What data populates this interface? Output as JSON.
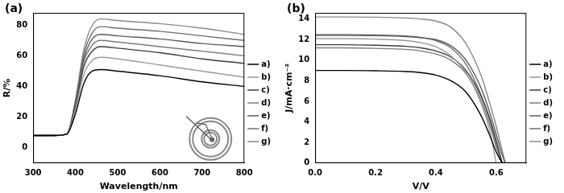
{
  "chart_data": [
    {
      "type": "line",
      "title": "(a)",
      "x_label": "Wavelength/nm",
      "y_label": "R/%",
      "x": [
        300,
        350,
        380,
        400,
        420,
        440,
        460,
        500,
        600,
        700,
        800
      ],
      "series": [
        {
          "name": "a)",
          "color": "#000000",
          "values": [
            8,
            8,
            9,
            22,
            42,
            50,
            51,
            50,
            47,
            43,
            40
          ]
        },
        {
          "name": "b)",
          "color": "#9a9a9a",
          "values": [
            8,
            8,
            9,
            25,
            48,
            57,
            59,
            58,
            54,
            50,
            46
          ]
        },
        {
          "name": "c)",
          "color": "#3c3c3c",
          "values": [
            8,
            8,
            9,
            27,
            53,
            63,
            66,
            65,
            62,
            58,
            55
          ]
        },
        {
          "name": "d)",
          "color": "#7a7a7a",
          "values": [
            8,
            8,
            9,
            28,
            56,
            67,
            70,
            69,
            66,
            63,
            60
          ]
        },
        {
          "name": "e)",
          "color": "#5a5a5a",
          "values": [
            8,
            8,
            9,
            29,
            58,
            71,
            74,
            73,
            71,
            68,
            66
          ]
        },
        {
          "name": "f)",
          "color": "#6e6e6e",
          "values": [
            8,
            8,
            9,
            30,
            61,
            75,
            79,
            78,
            76,
            73,
            70
          ]
        },
        {
          "name": "g)",
          "color": "#888888",
          "values": [
            8,
            8,
            9,
            31,
            64,
            80,
            84,
            83,
            81,
            78,
            74
          ]
        }
      ],
      "xlim": [
        300,
        800
      ],
      "xticks": [
        300,
        400,
        500,
        600,
        700,
        800
      ],
      "ylim": [
        -10,
        88
      ],
      "yticks": [
        0,
        20,
        40,
        60,
        80
      ],
      "grid": false,
      "legend": "right"
    },
    {
      "type": "line",
      "title": "(b)",
      "x_label": "V/V",
      "y_label": "J/mA·cm⁻²",
      "x": [
        0,
        0.1,
        0.2,
        0.3,
        0.35,
        0.4,
        0.45,
        0.5,
        0.55,
        0.58,
        0.6,
        0.62,
        0.63
      ],
      "series": [
        {
          "name": "a)",
          "color": "#000000",
          "values": [
            9.0,
            9.0,
            8.97,
            8.9,
            8.8,
            8.55,
            8.0,
            6.9,
            4.6,
            2.6,
            1.1,
            0,
            null
          ]
        },
        {
          "name": "b)",
          "color": "#9a9a9a",
          "values": [
            12.1,
            12.1,
            12.05,
            11.9,
            11.7,
            11.3,
            10.4,
            8.8,
            5.8,
            3.0,
            0,
            null,
            null
          ]
        },
        {
          "name": "c)",
          "color": "#3c3c3c",
          "values": [
            11.5,
            11.5,
            11.45,
            11.35,
            11.2,
            10.9,
            10.3,
            9.0,
            6.5,
            4.2,
            2.2,
            0,
            null
          ]
        },
        {
          "name": "d)",
          "color": "#7a7a7a",
          "values": [
            11.2,
            11.2,
            11.15,
            11.05,
            10.9,
            10.6,
            10.0,
            8.7,
            6.1,
            3.6,
            1.6,
            0,
            null
          ]
        },
        {
          "name": "e)",
          "color": "#5a5a5a",
          "values": [
            12.4,
            12.4,
            12.38,
            12.3,
            12.2,
            12.0,
            11.4,
            10.0,
            7.3,
            4.8,
            2.8,
            0.8,
            0
          ]
        },
        {
          "name": "f)",
          "color": "#6e6e6e",
          "values": [
            12.5,
            12.5,
            12.45,
            12.35,
            12.2,
            11.9,
            11.2,
            9.6,
            6.6,
            4.0,
            1.8,
            0,
            null
          ]
        },
        {
          "name": "g)",
          "color": "#888888",
          "values": [
            14.2,
            14.2,
            14.18,
            14.1,
            14.0,
            13.8,
            13.2,
            11.6,
            8.5,
            5.7,
            3.6,
            1.2,
            0
          ]
        }
      ],
      "xlim": [
        0,
        0.7
      ],
      "xticks": [
        {
          "value": 0,
          "label": "0.0"
        },
        {
          "value": 0.2,
          "label": "0.2"
        },
        {
          "value": 0.4,
          "label": "0.4"
        },
        {
          "value": 0.6,
          "label": "0.6"
        }
      ],
      "ylim": [
        0,
        14.6
      ],
      "yticks": [
        0,
        2,
        4,
        6,
        8,
        10,
        12,
        14
      ],
      "grid": false,
      "legend": "right"
    }
  ]
}
